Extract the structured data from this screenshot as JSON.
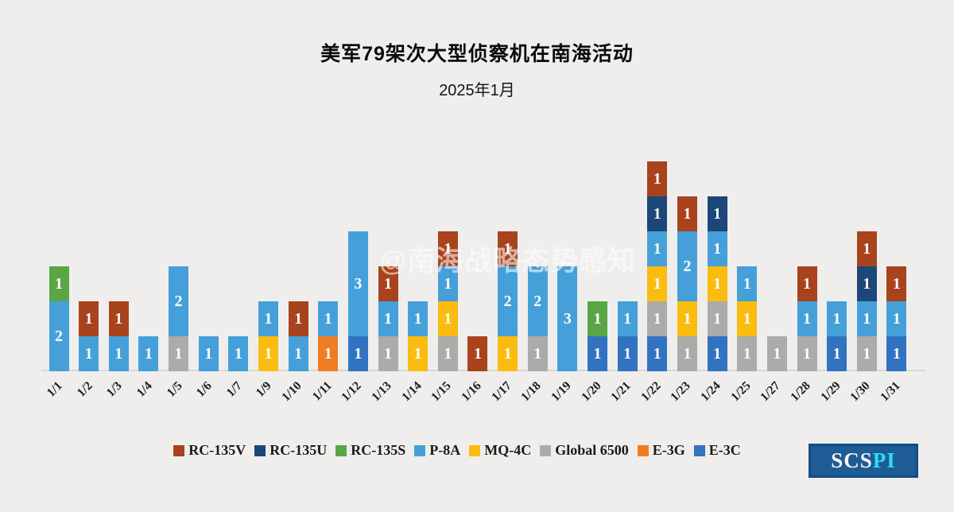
{
  "title": "美军79架次大型侦察机在南海活动",
  "subtitle": "2025年1月",
  "watermark": "@南海战略态势感知",
  "logo": {
    "scs": "SCS",
    "pi": "PI"
  },
  "chart_data": {
    "type": "bar",
    "stacked": true,
    "title": "美军79架次大型侦察机在南海活动",
    "subtitle": "2025年1月",
    "total_sorties": 79,
    "xlabel": "",
    "ylabel": "",
    "ylim": [
      0,
      6
    ],
    "grid": false,
    "legend_position": "bottom",
    "categories": [
      "1/1",
      "1/2",
      "1/3",
      "1/4",
      "1/5",
      "1/6",
      "1/7",
      "1/9",
      "1/10",
      "1/11",
      "1/12",
      "1/13",
      "1/14",
      "1/15",
      "1/16",
      "1/17",
      "1/18",
      "1/19",
      "1/20",
      "1/21",
      "1/22",
      "1/23",
      "1/24",
      "1/25",
      "1/27",
      "1/28",
      "1/29",
      "1/30",
      "1/31"
    ],
    "series_legend": [
      {
        "name": "RC-135V",
        "color": "#a8431d"
      },
      {
        "name": "RC-135U",
        "color": "#1c4778"
      },
      {
        "name": "RC-135S",
        "color": "#5ba644"
      },
      {
        "name": "P-8A",
        "color": "#45a0da"
      },
      {
        "name": "MQ-4C",
        "color": "#fbbc10"
      },
      {
        "name": "Global 6500",
        "color": "#ababab"
      },
      {
        "name": "E-3G",
        "color": "#ee7d23"
      },
      {
        "name": "E-3C",
        "color": "#3173c0"
      }
    ],
    "bars": [
      {
        "date": "1/1",
        "segments": [
          {
            "series": "P-8A",
            "value": 2
          },
          {
            "series": "RC-135S",
            "value": 1
          }
        ]
      },
      {
        "date": "1/2",
        "segments": [
          {
            "series": "P-8A",
            "value": 1
          },
          {
            "series": "RC-135V",
            "value": 1
          }
        ]
      },
      {
        "date": "1/3",
        "segments": [
          {
            "series": "P-8A",
            "value": 1
          },
          {
            "series": "RC-135V",
            "value": 1
          }
        ]
      },
      {
        "date": "1/4",
        "segments": [
          {
            "series": "P-8A",
            "value": 1
          }
        ]
      },
      {
        "date": "1/5",
        "segments": [
          {
            "series": "Global 6500",
            "value": 1
          },
          {
            "series": "P-8A",
            "value": 2
          }
        ]
      },
      {
        "date": "1/6",
        "segments": [
          {
            "series": "P-8A",
            "value": 1
          }
        ]
      },
      {
        "date": "1/7",
        "segments": [
          {
            "series": "P-8A",
            "value": 1
          }
        ]
      },
      {
        "date": "1/9",
        "segments": [
          {
            "series": "MQ-4C",
            "value": 1
          },
          {
            "series": "P-8A",
            "value": 1
          }
        ]
      },
      {
        "date": "1/10",
        "segments": [
          {
            "series": "P-8A",
            "value": 1
          },
          {
            "series": "RC-135V",
            "value": 1
          }
        ]
      },
      {
        "date": "1/11",
        "segments": [
          {
            "series": "E-3G",
            "value": 1
          },
          {
            "series": "P-8A",
            "value": 1
          }
        ]
      },
      {
        "date": "1/12",
        "segments": [
          {
            "series": "E-3C",
            "value": 1
          },
          {
            "series": "P-8A",
            "value": 3
          }
        ]
      },
      {
        "date": "1/13",
        "segments": [
          {
            "series": "Global 6500",
            "value": 1
          },
          {
            "series": "P-8A",
            "value": 1
          },
          {
            "series": "RC-135V",
            "value": 1
          }
        ]
      },
      {
        "date": "1/14",
        "segments": [
          {
            "series": "MQ-4C",
            "value": 1
          },
          {
            "series": "P-8A",
            "value": 1
          }
        ]
      },
      {
        "date": "1/15",
        "segments": [
          {
            "series": "Global 6500",
            "value": 1
          },
          {
            "series": "MQ-4C",
            "value": 1
          },
          {
            "series": "P-8A",
            "value": 1
          },
          {
            "series": "RC-135V",
            "value": 1
          }
        ]
      },
      {
        "date": "1/16",
        "segments": [
          {
            "series": "RC-135V",
            "value": 1
          }
        ]
      },
      {
        "date": "1/17",
        "segments": [
          {
            "series": "MQ-4C",
            "value": 1
          },
          {
            "series": "P-8A",
            "value": 2
          },
          {
            "series": "RC-135V",
            "value": 1
          }
        ]
      },
      {
        "date": "1/18",
        "segments": [
          {
            "series": "Global 6500",
            "value": 1
          },
          {
            "series": "P-8A",
            "value": 2
          }
        ]
      },
      {
        "date": "1/19",
        "segments": [
          {
            "series": "P-8A",
            "value": 3
          }
        ]
      },
      {
        "date": "1/20",
        "segments": [
          {
            "series": "E-3C",
            "value": 1
          },
          {
            "series": "RC-135S",
            "value": 1
          }
        ]
      },
      {
        "date": "1/21",
        "segments": [
          {
            "series": "E-3C",
            "value": 1
          },
          {
            "series": "P-8A",
            "value": 1
          }
        ]
      },
      {
        "date": "1/22",
        "segments": [
          {
            "series": "E-3C",
            "value": 1
          },
          {
            "series": "Global 6500",
            "value": 1
          },
          {
            "series": "MQ-4C",
            "value": 1
          },
          {
            "series": "P-8A",
            "value": 1
          },
          {
            "series": "RC-135U",
            "value": 1
          },
          {
            "series": "RC-135V",
            "value": 1
          }
        ]
      },
      {
        "date": "1/23",
        "segments": [
          {
            "series": "Global 6500",
            "value": 1
          },
          {
            "series": "MQ-4C",
            "value": 1
          },
          {
            "series": "P-8A",
            "value": 2
          },
          {
            "series": "RC-135V",
            "value": 1
          }
        ]
      },
      {
        "date": "1/24",
        "segments": [
          {
            "series": "E-3C",
            "value": 1
          },
          {
            "series": "Global 6500",
            "value": 1
          },
          {
            "series": "MQ-4C",
            "value": 1
          },
          {
            "series": "P-8A",
            "value": 1
          },
          {
            "series": "RC-135U",
            "value": 1
          }
        ]
      },
      {
        "date": "1/25",
        "segments": [
          {
            "series": "Global 6500",
            "value": 1
          },
          {
            "series": "MQ-4C",
            "value": 1
          },
          {
            "series": "P-8A",
            "value": 1
          }
        ]
      },
      {
        "date": "1/27",
        "segments": [
          {
            "series": "Global 6500",
            "value": 1
          }
        ]
      },
      {
        "date": "1/28",
        "segments": [
          {
            "series": "Global 6500",
            "value": 1
          },
          {
            "series": "P-8A",
            "value": 1
          },
          {
            "series": "RC-135V",
            "value": 1
          }
        ]
      },
      {
        "date": "1/29",
        "segments": [
          {
            "series": "E-3C",
            "value": 1
          },
          {
            "series": "P-8A",
            "value": 1
          }
        ]
      },
      {
        "date": "1/30",
        "segments": [
          {
            "series": "Global 6500",
            "value": 1
          },
          {
            "series": "P-8A",
            "value": 1
          },
          {
            "series": "RC-135U",
            "value": 1
          },
          {
            "series": "RC-135V",
            "value": 1
          }
        ]
      },
      {
        "date": "1/31",
        "segments": [
          {
            "series": "E-3C",
            "value": 1
          },
          {
            "series": "P-8A",
            "value": 1
          },
          {
            "series": "RC-135V",
            "value": 1
          }
        ]
      }
    ]
  }
}
